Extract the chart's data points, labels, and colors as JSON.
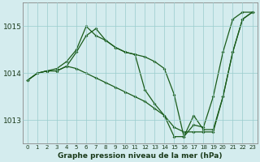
{
  "title": "Graphe pression niveau de la mer (hPa)",
  "background_color": "#d4ecee",
  "grid_color": "#99cccc",
  "line_color": "#1a5c1a",
  "x_hours": [
    0,
    1,
    2,
    3,
    4,
    5,
    6,
    7,
    8,
    9,
    10,
    11,
    12,
    13,
    14,
    15,
    16,
    17,
    18,
    19,
    20,
    21,
    22,
    23
  ],
  "series1": [
    1013.85,
    1014.0,
    1014.05,
    1014.05,
    1014.15,
    1014.45,
    1014.8,
    1014.95,
    1014.7,
    1014.55,
    1014.45,
    1014.4,
    1014.35,
    1014.25,
    1014.1,
    1013.55,
    1012.65,
    1013.1,
    1012.8,
    1012.8,
    1013.5,
    1014.45,
    1015.15,
    1015.3
  ],
  "series2": [
    1013.85,
    1014.0,
    1014.05,
    1014.05,
    1014.15,
    1014.1,
    1014.0,
    1013.9,
    1013.8,
    1013.7,
    1013.6,
    1013.5,
    1013.4,
    1013.25,
    1013.1,
    1012.85,
    1012.75,
    1012.75,
    1012.75,
    1012.75,
    1013.5,
    1014.45,
    1015.15,
    1015.3
  ],
  "series3": [
    1013.85,
    1014.0,
    1014.05,
    1014.1,
    1014.25,
    1014.5,
    1015.0,
    1014.8,
    1014.7,
    1014.55,
    1014.45,
    1014.4,
    1013.65,
    1013.35,
    1013.1,
    1012.65,
    1012.65,
    1012.9,
    1012.85,
    1013.5,
    1014.45,
    1015.15,
    1015.3,
    1015.3
  ],
  "ylim": [
    1012.5,
    1015.5
  ],
  "yticks": [
    1013,
    1014,
    1015
  ],
  "xticks": [
    0,
    1,
    2,
    3,
    4,
    5,
    6,
    7,
    8,
    9,
    10,
    11,
    12,
    13,
    14,
    15,
    16,
    17,
    18,
    19,
    20,
    21,
    22,
    23
  ],
  "marker_size": 2.0,
  "line_width": 0.9,
  "xlabel_fontsize": 6.5,
  "xtick_fontsize": 5.0,
  "ytick_fontsize": 6.5
}
